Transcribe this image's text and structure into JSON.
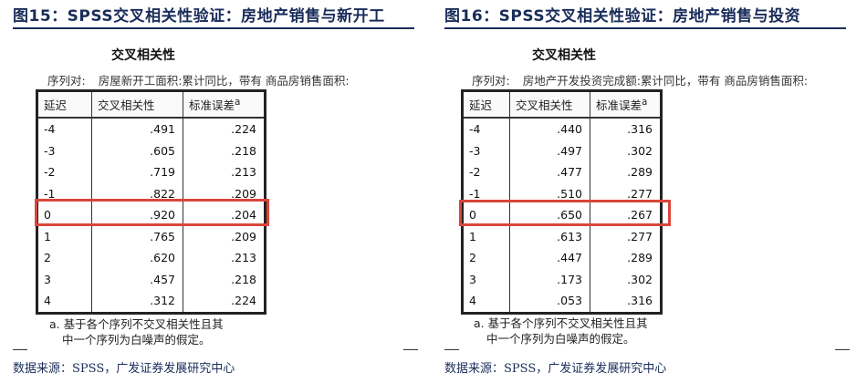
{
  "left": {
    "figure_title": "图15：SPSS交叉相关性验证：房地产销售与新开工",
    "table_title": "交叉相关性",
    "pair_label": "序列对:",
    "pair_value": "房屋新开工面积:累计同比，带有 商品房销售面积:",
    "headers": {
      "lag": "延迟",
      "corr": "交叉相关性",
      "se": "标准误差",
      "se_sup": "a"
    },
    "rows": [
      {
        "lag": "-4",
        "corr": ".491",
        "se": ".224"
      },
      {
        "lag": "-3",
        "corr": ".605",
        "se": ".218"
      },
      {
        "lag": "-2",
        "corr": ".719",
        "se": ".213"
      },
      {
        "lag": "-1",
        "corr": ".822",
        "se": ".209"
      },
      {
        "lag": "0",
        "corr": ".920",
        "se": ".204"
      },
      {
        "lag": "1",
        "corr": ".765",
        "se": ".209"
      },
      {
        "lag": "2",
        "corr": ".620",
        "se": ".213"
      },
      {
        "lag": "3",
        "corr": ".457",
        "se": ".218"
      },
      {
        "lag": "4",
        "corr": ".312",
        "se": ".224"
      }
    ],
    "highlight_lag": "0",
    "footnote_line1": "a. 基于各个序列不交叉相关性且其",
    "footnote_line2": "中一个序列为白噪声的假定。",
    "source": "数据来源：SPSS，广发证券发展研究中心"
  },
  "right": {
    "figure_title": "图16：SPSS交叉相关性验证：房地产销售与投资",
    "table_title": "交叉相关性",
    "pair_label": "序列对:",
    "pair_value": "房地产开发投资完成额:累计同比，带有 商品房销售面积:",
    "headers": {
      "lag": "延迟",
      "corr": "交叉相关性",
      "se": "标准误差",
      "se_sup": "a"
    },
    "rows": [
      {
        "lag": "-4",
        "corr": ".440",
        "se": ".316"
      },
      {
        "lag": "-3",
        "corr": ".497",
        "se": ".302"
      },
      {
        "lag": "-2",
        "corr": ".477",
        "se": ".289"
      },
      {
        "lag": "-1",
        "corr": ".510",
        "se": ".277"
      },
      {
        "lag": "0",
        "corr": ".650",
        "se": ".267"
      },
      {
        "lag": "1",
        "corr": ".613",
        "se": ".277"
      },
      {
        "lag": "2",
        "corr": ".447",
        "se": ".289"
      },
      {
        "lag": "3",
        "corr": ".173",
        "se": ".302"
      },
      {
        "lag": "4",
        "corr": ".053",
        "se": ".316"
      }
    ],
    "highlight_lag": "0",
    "footnote_line1": "a. 基于各个序列不交叉相关性且其",
    "footnote_line2": "中一个序列为白噪声的假定。",
    "source": "数据来源：SPSS，广发证券发展研究中心"
  },
  "colors": {
    "title": "#1a2d5a",
    "highlight": "#d9463b"
  }
}
